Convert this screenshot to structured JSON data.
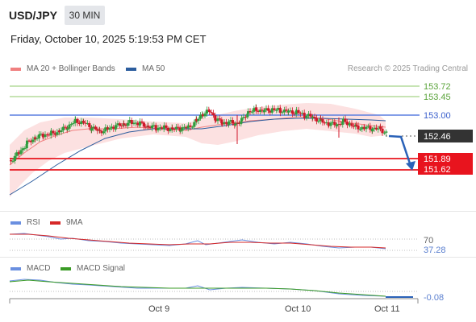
{
  "header": {
    "symbol": "USD/JPY",
    "timeframe": "30 MIN",
    "datetime": "Friday, October 10, 2025 5:19:53 PM CET"
  },
  "legend": {
    "ma20_label": "MA 20 + Bollinger Bands",
    "ma50_label": "MA 50",
    "research": "Research © 2025 Trading Central"
  },
  "colors": {
    "ma20": "#f08080",
    "ma50": "#2c5d9e",
    "bull": "#2f9e3f",
    "bear": "#d0182a",
    "resistance": "#5b7fe0",
    "support": "#e8141e",
    "green_line": "#8fc96a",
    "rsi": "#6a8fe0",
    "rsi_ma": "#d62828",
    "macd": "#6a8fe0",
    "macd_signal": "#3a9b25",
    "arrow": "#2a62b8"
  },
  "price_levels": [
    {
      "label": "153.72",
      "type": "target-up"
    },
    {
      "label": "153.45",
      "type": "target-up"
    },
    {
      "label": "153.00",
      "type": "pivot"
    },
    {
      "label": "152.46",
      "type": "last"
    },
    {
      "label": "151.89",
      "type": "target-down"
    },
    {
      "label": "151.62",
      "type": "target-down"
    }
  ],
  "rsi": {
    "title": "RSI",
    "ma_title": "9MA",
    "level": "70",
    "value": "37.28"
  },
  "macd": {
    "title": "MACD",
    "signal_title": "MACD Signal",
    "value": "-0.08"
  },
  "x_axis": [
    "Oct 9",
    "Oct 10",
    "Oct 11"
  ]
}
